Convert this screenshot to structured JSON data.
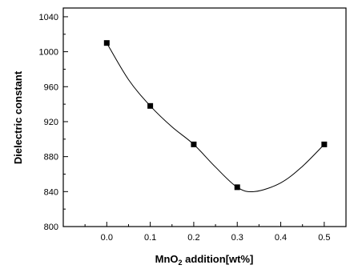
{
  "chart_data": {
    "type": "scatter",
    "title": "",
    "xlabel_main": "MnO",
    "xlabel_sub": "2",
    "xlabel_rest": " addition[wt%]",
    "ylabel": "Dielectric constant",
    "xlim": [
      -0.1,
      0.55
    ],
    "ylim": [
      800,
      1050
    ],
    "x_ticks": [
      0.0,
      0.1,
      0.2,
      0.3,
      0.4,
      0.5
    ],
    "x_tick_labels": [
      "0.0",
      "0.1",
      "0.2",
      "0.3",
      "0.4",
      "0.5"
    ],
    "y_ticks": [
      800,
      840,
      880,
      920,
      960,
      1000,
      1040
    ],
    "y_tick_labels": [
      "800",
      "840",
      "880",
      "920",
      "960",
      "1000",
      "1040"
    ],
    "grid": false,
    "legend": "none",
    "series": [
      {
        "marker": "square",
        "x": [
          0.0,
          0.1,
          0.2,
          0.3,
          0.5
        ],
        "y": [
          1010,
          938,
          894,
          845,
          894
        ]
      }
    ],
    "fit_curve": {
      "x": [
        0.0,
        0.05,
        0.1,
        0.15,
        0.2,
        0.25,
        0.3,
        0.34,
        0.4,
        0.45,
        0.5
      ],
      "y": [
        1010,
        968,
        938,
        914,
        894,
        868,
        845,
        840,
        850,
        869,
        894
      ]
    }
  }
}
